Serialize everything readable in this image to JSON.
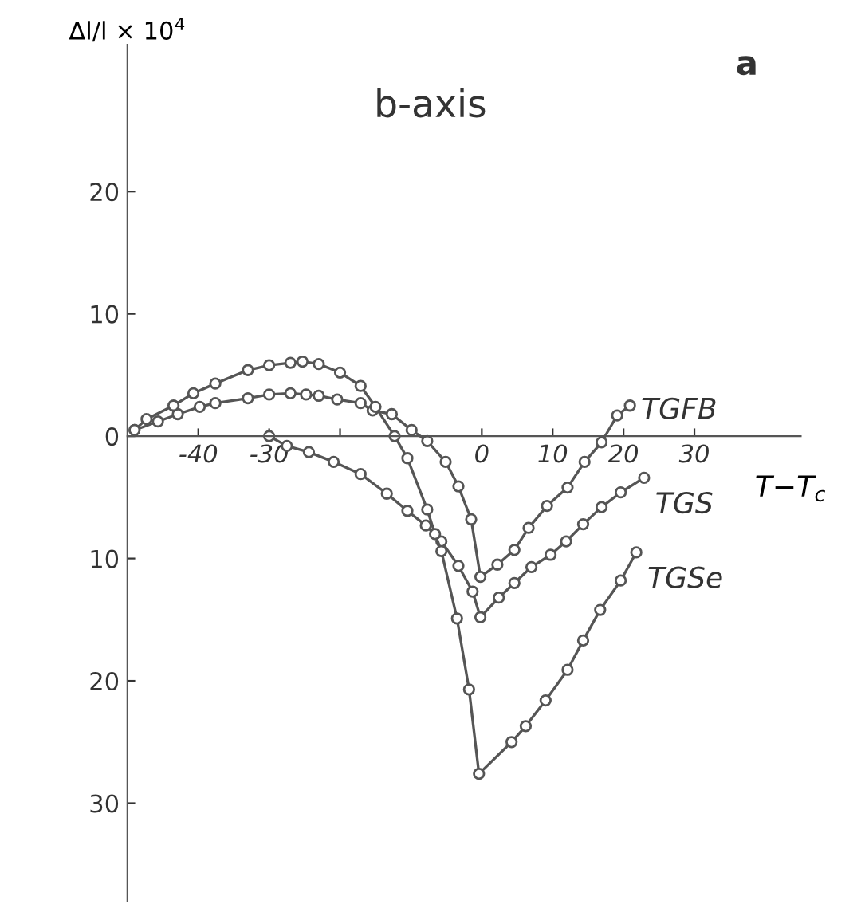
{
  "chart_data": {
    "type": "line",
    "title": "b-axis",
    "xlabel": "T−T$_{c}$",
    "ylabel": "Δl/l × 10$^{4}$",
    "annotations": [
      "a"
    ],
    "xlim": [
      -50,
      45
    ],
    "ylim": [
      -38,
      32
    ],
    "xticks": [
      -40,
      -30,
      {
        "value": -20,
        "label": null
      },
      {
        "value": -10,
        "label": null
      },
      0,
      10,
      20,
      30
    ],
    "yticks": [
      20,
      10,
      0,
      {
        "value": -10,
        "label": "10"
      },
      {
        "value": -20,
        "label": "20"
      },
      {
        "value": -30,
        "label": "30"
      }
    ],
    "marker": "circle",
    "line_style": "solid",
    "grid": false,
    "legend": false,
    "series": [
      {
        "name": "TGFB",
        "color": "#555555",
        "x": [
          -49,
          -45.7,
          -42.9,
          -39.8,
          -37.6,
          -33,
          -30,
          -27,
          -24.8,
          -23,
          -20.4,
          -17.1,
          -15.4,
          -12.7,
          -9.9,
          -7.7,
          -5.1,
          -3.3,
          -1.5,
          -0.2,
          2.2,
          4.6,
          6.6,
          9.2,
          12.1,
          14.5,
          16.9,
          19.1,
          20.9
        ],
        "values": [
          0.5,
          1.2,
          1.8,
          2.4,
          2.7,
          3.1,
          3.4,
          3.5,
          3.4,
          3.3,
          3.0,
          2.7,
          2.1,
          1.8,
          0.5,
          -0.4,
          -2.1,
          -4.1,
          -6.8,
          -11.5,
          -10.5,
          -9.3,
          -7.5,
          -5.7,
          -4.2,
          -2.1,
          -0.5,
          1.7,
          2.5
        ]
      },
      {
        "name": "TGS",
        "color": "#555555",
        "x": [
          -30,
          -27.5,
          -24.4,
          -20.9,
          -17.1,
          -13.4,
          -10.5,
          -7.9,
          -5.7,
          -3.3,
          -1.3,
          -0.2,
          2.4,
          4.6,
          7,
          9.7,
          11.9,
          14.3,
          16.9,
          19.6,
          22.9
        ],
        "values": [
          0,
          -0.8,
          -1.3,
          -2.1,
          -3.1,
          -4.7,
          -6.1,
          -7.3,
          -8.6,
          -10.6,
          -12.7,
          -14.8,
          -13.2,
          -12,
          -10.7,
          -9.7,
          -8.6,
          -7.2,
          -5.8,
          -4.6,
          -3.4
        ]
      },
      {
        "name": "TGSe",
        "color": "#555555",
        "x": [
          -49,
          -47.3,
          -43.5,
          -40.7,
          -37.6,
          -33,
          -30,
          -27,
          -25.3,
          -23,
          -20,
          -17.1,
          -15,
          -12.3,
          -10.5,
          -7.7,
          -6.6,
          -5.7,
          -3.5,
          -1.8,
          -0.4,
          4.2,
          6.2,
          9,
          12.1,
          14.3,
          16.7,
          19.6,
          21.8
        ],
        "values": [
          0.5,
          1.4,
          2.5,
          3.5,
          4.3,
          5.4,
          5.8,
          6.0,
          6.1,
          5.9,
          5.2,
          4.1,
          2.4,
          0,
          -1.8,
          -6.0,
          -8.0,
          -9.4,
          -14.9,
          -20.7,
          -27.6,
          -25,
          -23.7,
          -21.6,
          -19.1,
          -16.7,
          -14.2,
          -11.8,
          -9.5
        ]
      }
    ]
  }
}
